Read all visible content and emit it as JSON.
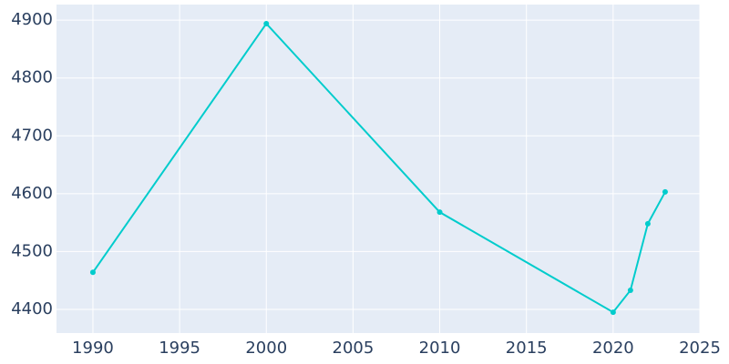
{
  "chart_data": {
    "type": "line",
    "x": [
      1990,
      2000,
      2010,
      2020,
      2021,
      2022,
      2023
    ],
    "values": [
      4464,
      4894,
      4568,
      4395,
      4433,
      4548,
      4603
    ],
    "color": "#00cccc",
    "xlim": [
      1987.9,
      2025
    ],
    "xticks": [
      1990,
      1995,
      2000,
      2005,
      2010,
      2015,
      2020,
      2025
    ],
    "ylim": [
      4359,
      4927
    ],
    "yticks": [
      4400,
      4500,
      4600,
      4700,
      4800,
      4900
    ],
    "grid": true
  }
}
